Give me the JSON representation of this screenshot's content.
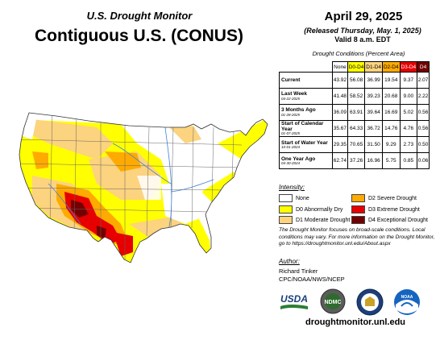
{
  "header": {
    "subtitle": "U.S. Drought Monitor",
    "title": "Contiguous U.S. (CONUS)",
    "date": "April 29, 2025",
    "released": "(Released Thursday, May. 1, 2025)",
    "valid": "Valid 8 a.m. EDT"
  },
  "table": {
    "caption": "Drought Conditions (Percent Area)",
    "columns": [
      "None",
      "D0-D4",
      "D1-D4",
      "D2-D4",
      "D3-D4",
      "D4"
    ],
    "column_colors": [
      "#ffffff",
      "#ffff00",
      "#fcd37f",
      "#ffaa00",
      "#e60000",
      "#730000"
    ],
    "rows": [
      {
        "label": "Current",
        "sub": "",
        "values": [
          "43.92",
          "56.08",
          "36.99",
          "19.54",
          "9.37",
          "2.07"
        ]
      },
      {
        "label": "Last Week",
        "sub": "04-22-2025",
        "values": [
          "41.48",
          "58.52",
          "39.23",
          "20.68",
          "9.00",
          "2.22"
        ]
      },
      {
        "label": "3 Months Ago",
        "sub": "01-28-2025",
        "values": [
          "36.09",
          "63.91",
          "39.64",
          "16.69",
          "5.02",
          "0.56"
        ]
      },
      {
        "label": "Start of Calendar Year",
        "sub": "01-07-2025",
        "values": [
          "35.67",
          "64.33",
          "36.72",
          "14.76",
          "4.76",
          "0.56"
        ]
      },
      {
        "label": "Start of Water Year",
        "sub": "10-01-2024",
        "values": [
          "29.35",
          "70.65",
          "31.50",
          "9.29",
          "2.73",
          "0.50"
        ]
      },
      {
        "label": "One Year Ago",
        "sub": "04-30-2024",
        "values": [
          "62.74",
          "37.26",
          "16.96",
          "5.75",
          "0.85",
          "0.06"
        ]
      }
    ]
  },
  "legend": {
    "heading": "Intensity:",
    "items": [
      {
        "label": "None",
        "color": "#ffffff"
      },
      {
        "label": "D0 Abnormally Dry",
        "color": "#ffff00"
      },
      {
        "label": "D1 Moderate Drought",
        "color": "#fcd37f"
      },
      {
        "label": "D2 Severe Drought",
        "color": "#ffaa00"
      },
      {
        "label": "D3 Extreme Drought",
        "color": "#e60000"
      },
      {
        "label": "D4 Exceptional Drought",
        "color": "#730000"
      }
    ]
  },
  "note": "The Drought Monitor focuses on broad-scale conditions. Local conditions may vary. For more information on the Drought Monitor, go to https://droughtmonitor.unl.edu/About.aspx",
  "author": {
    "heading": "Author:",
    "name": "Richard Tinker",
    "org": "CPC/NOAA/NWS/NCEP"
  },
  "logos": {
    "usda": "USDA",
    "ndmc": "NDMC",
    "noaa": "NOAA"
  },
  "url": "droughtmonitor.unl.edu"
}
